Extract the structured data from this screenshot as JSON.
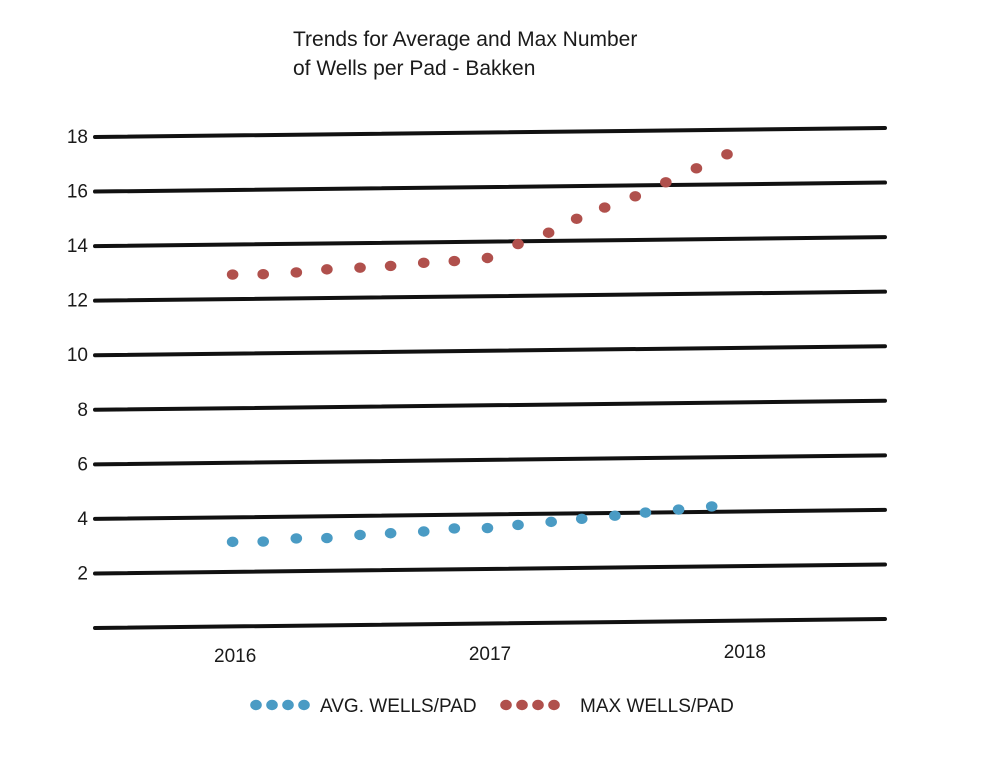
{
  "chart_data": {
    "type": "scatter",
    "title_lines": [
      "Trends for Average and Max Number",
      "of Wells per Pad - Bakken"
    ],
    "xlabel": "",
    "ylabel": "",
    "x_ticks": [
      "2016",
      "2017",
      "2018"
    ],
    "x_tick_values": [
      2016,
      2017,
      2018
    ],
    "xlim": [
      2015.45,
      2018.55
    ],
    "y_ticks": [
      0,
      2,
      4,
      6,
      8,
      10,
      12,
      14,
      16,
      18
    ],
    "y_tick_labels": [
      "",
      "2",
      "4",
      "6",
      "8",
      "10",
      "12",
      "14",
      "16",
      "18"
    ],
    "ylim": [
      0,
      18
    ],
    "grid": true,
    "legend_position": "bottom-center",
    "series": [
      {
        "name": "AVG. WELLS/PAD",
        "color": "#4a9bc4",
        "x": [
          2015.99,
          2016.11,
          2016.24,
          2016.36,
          2016.49,
          2016.61,
          2016.74,
          2016.86,
          2016.99,
          2017.11,
          2017.24,
          2017.36,
          2017.49,
          2017.61,
          2017.74,
          2017.87
        ],
        "y": [
          3.1,
          3.1,
          3.2,
          3.2,
          3.3,
          3.35,
          3.4,
          3.5,
          3.5,
          3.6,
          3.7,
          3.8,
          3.9,
          4.0,
          4.1,
          4.2
        ]
      },
      {
        "name": "MAX WELLS/PAD",
        "color": "#b0504c",
        "x": [
          2015.99,
          2016.11,
          2016.24,
          2016.36,
          2016.49,
          2016.61,
          2016.74,
          2016.86,
          2016.99,
          2017.11,
          2017.23,
          2017.34,
          2017.45,
          2017.57,
          2017.69,
          2017.81,
          2017.93
        ],
        "y": [
          12.9,
          12.9,
          12.95,
          13.05,
          13.1,
          13.15,
          13.25,
          13.3,
          13.4,
          13.9,
          14.3,
          14.8,
          15.2,
          15.6,
          16.1,
          16.6,
          17.1
        ]
      }
    ]
  }
}
